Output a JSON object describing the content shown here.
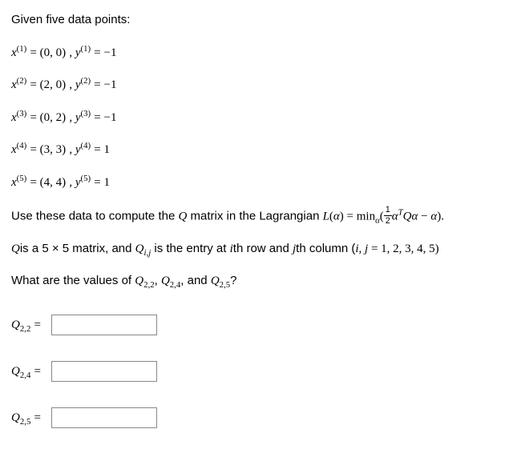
{
  "prompt": {
    "intro": "Given five data points:",
    "points": [
      {
        "x_label": "x",
        "sup": "(1)",
        "x_display": "(0, 0)",
        "y_label": "y",
        "y_sup": "(1)",
        "y_val": "−1"
      },
      {
        "x_label": "x",
        "sup": "(2)",
        "x_display": "(2, 0)",
        "y_label": "y",
        "y_sup": "(2)",
        "y_val": "−1"
      },
      {
        "x_label": "x",
        "sup": "(3)",
        "x_display": "(0, 2)",
        "y_label": "y",
        "y_sup": "(3)",
        "y_val": "−1"
      },
      {
        "x_label": "x",
        "sup": "(4)",
        "x_display": "(3, 3)",
        "y_label": "y",
        "y_sup": "(4)",
        "y_val": "1"
      },
      {
        "x_label": "x",
        "sup": "(5)",
        "x_display": "(4, 4)",
        "y_label": "y",
        "y_sup": "(5)",
        "y_val": "1"
      }
    ],
    "lagrangian_prefix": "Use these data to compute the ",
    "Q": "Q",
    "lagrangian_mid": " matrix in the Lagrangian ",
    "L": "L",
    "alpha": "α",
    "lagrangian_eq_mid": ") = min",
    "frac_num": "1",
    "frac_den": "2",
    "alpha_T": "T",
    "Q_matrix_spec_prefix_q": "Q",
    "Q_matrix_spec_prefix": "is a 5 × 5 matrix, and ",
    "Qij": "Q",
    "Q_matrix_spec_mid": " is the entry at ",
    "ith": "i",
    "th_row": "th row and ",
    "jth": "j",
    "th_col": "th column (",
    "ij": "i, j",
    "ij_vals": " = 1, 2, 3, 4, 5)",
    "question_prefix": "What are the values of ",
    "Q22": "Q",
    "Q24": "Q",
    "Q25": "Q",
    "and": ", and ",
    "comma": ", ",
    "qmark": "?"
  },
  "answers": [
    {
      "label": "Q",
      "sub": "2,2",
      "value": ""
    },
    {
      "label": "Q",
      "sub": "2,4",
      "value": ""
    },
    {
      "label": "Q",
      "sub": "2,5",
      "value": ""
    }
  ]
}
